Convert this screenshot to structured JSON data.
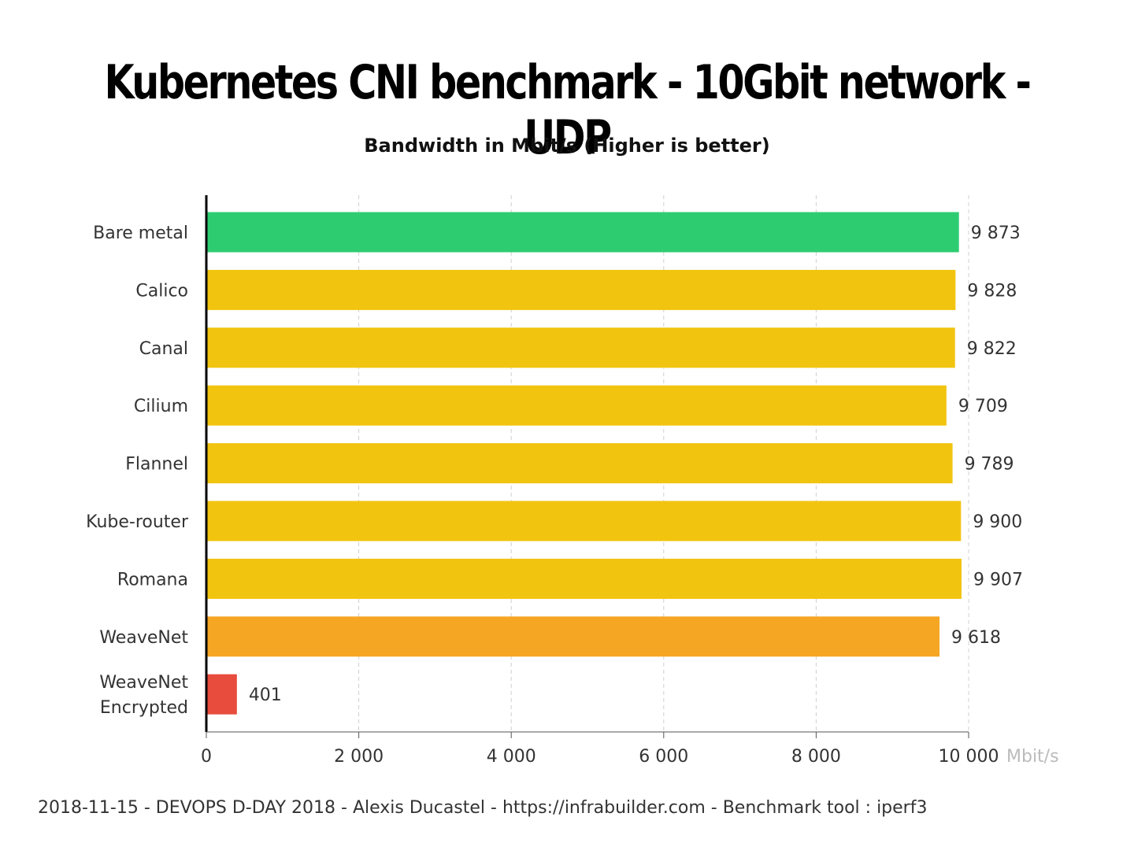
{
  "title": "Kubernetes CNI benchmark - 10Gbit network - UDP",
  "subtitle": "Bandwidth in Mbit/s (Higher is better)",
  "footer": "2018-11-15 - DEVOPS D-DAY 2018 - Alexis Ducastel - https://infrabuilder.com - Benchmark tool : iperf3",
  "colors": {
    "green": "#2ecc71",
    "yellow": "#f1c40f",
    "orange": "#f5a623",
    "red": "#e74c3c"
  },
  "chart_data": {
    "type": "bar",
    "orientation": "horizontal",
    "title": "Kubernetes CNI benchmark - 10Gbit network - UDP",
    "subtitle": "Bandwidth in Mbit/s (Higher is better)",
    "xlabel": "",
    "ylabel": "",
    "unit": "Mbit/s",
    "xlim": [
      0,
      10000
    ],
    "grid": "vertical dashed",
    "ticks": [
      {
        "value": 0,
        "label": "0"
      },
      {
        "value": 2000,
        "label": "2 000"
      },
      {
        "value": 4000,
        "label": "4 000"
      },
      {
        "value": 6000,
        "label": "6 000"
      },
      {
        "value": 8000,
        "label": "8 000"
      },
      {
        "value": 10000,
        "label": "10 000"
      }
    ],
    "bars": [
      {
        "category": [
          "Bare metal"
        ],
        "value": 9873,
        "label": "9 873",
        "color": "green"
      },
      {
        "category": [
          "Calico"
        ],
        "value": 9828,
        "label": "9 828",
        "color": "yellow"
      },
      {
        "category": [
          "Canal"
        ],
        "value": 9822,
        "label": "9 822",
        "color": "yellow"
      },
      {
        "category": [
          "Cilium"
        ],
        "value": 9709,
        "label": "9 709",
        "color": "yellow"
      },
      {
        "category": [
          "Flannel"
        ],
        "value": 9789,
        "label": "9 789",
        "color": "yellow"
      },
      {
        "category": [
          "Kube-router"
        ],
        "value": 9900,
        "label": "9 900",
        "color": "yellow"
      },
      {
        "category": [
          "Romana"
        ],
        "value": 9907,
        "label": "9 907",
        "color": "yellow"
      },
      {
        "category": [
          "WeaveNet"
        ],
        "value": 9618,
        "label": "9 618",
        "color": "orange"
      },
      {
        "category": [
          "WeaveNet",
          "Encrypted"
        ],
        "value": 401,
        "label": "401",
        "color": "red"
      }
    ]
  }
}
